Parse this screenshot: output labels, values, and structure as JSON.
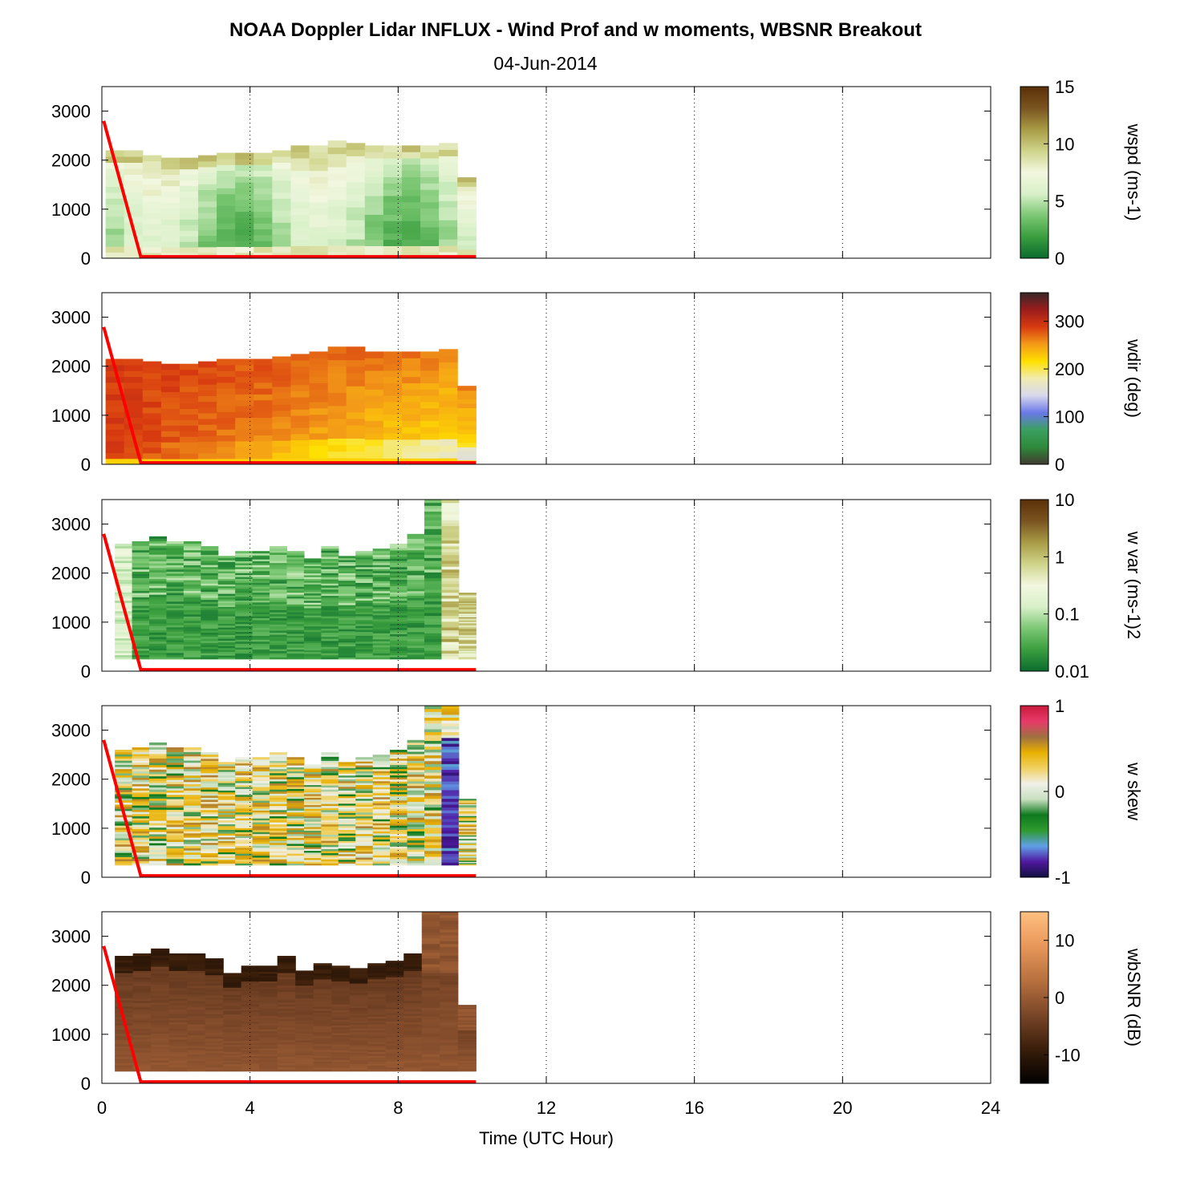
{
  "figure": {
    "title": "NOAA Doppler Lidar INFLUX - Wind Prof and w moments, WBSNR Breakout",
    "subtitle": "04-Jun-2014",
    "xlabel": "Time (UTC Hour)"
  },
  "colors": {
    "mixing_height_line": "#ff0000",
    "grid": "#000000"
  },
  "chart_data": [
    {
      "type": "heatmap",
      "name": "wspd",
      "colorbar_label": "wspd (ms-1)",
      "colorbar_ticks": [
        "15",
        "10",
        "5",
        "0"
      ],
      "clim": [
        0,
        15
      ],
      "colormap": [
        "#0b6b2e",
        "#3a9e3e",
        "#7cc874",
        "#d8f0c8",
        "#f2f7df",
        "#cfd48a",
        "#a89b45",
        "#7a5420",
        "#5a3008"
      ],
      "xlim": [
        0,
        24
      ],
      "ylim": [
        0,
        3500
      ],
      "xticks": [
        0,
        4,
        8,
        12,
        16,
        20,
        24
      ],
      "yticks": [
        "3000",
        "2000",
        "1000",
        "0"
      ],
      "grid": "vertical dotted",
      "time_bins_hr": [
        0.1,
        0.6,
        1.1,
        1.6,
        2.1,
        2.6,
        3.1,
        3.6,
        4.1,
        4.6,
        5.1,
        5.6,
        6.1,
        6.6,
        7.1,
        7.6,
        8.1,
        8.6,
        9.1,
        9.6,
        10.1
      ],
      "top_height_m": [
        2200,
        2200,
        2100,
        2050,
        2050,
        2100,
        2150,
        2150,
        2150,
        2200,
        2300,
        2300,
        2400,
        2350,
        2300,
        2300,
        2300,
        2300,
        2350,
        1650
      ],
      "bottom_height_m": 0,
      "value_range": [
        2,
        12
      ]
    },
    {
      "type": "heatmap",
      "name": "wdir",
      "colorbar_label": "wdir (deg)",
      "colorbar_ticks": [
        "300",
        "200",
        "100",
        "0"
      ],
      "clim": [
        0,
        360
      ],
      "colormap": [
        "#403a30",
        "#2e8a3a",
        "#3aa060",
        "#6a78e8",
        "#d8d8ee",
        "#f0ecb0",
        "#ffe000",
        "#f39a18",
        "#d83a10",
        "#9c1c1c",
        "#382828"
      ],
      "xlim": [
        0,
        24
      ],
      "ylim": [
        0,
        3500
      ],
      "xticks": [
        0,
        4,
        8,
        12,
        16,
        20,
        24
      ],
      "yticks": [
        "3000",
        "2000",
        "1000",
        "0"
      ],
      "grid": "vertical dotted",
      "top_height_m": [
        2150,
        2150,
        2100,
        2050,
        2050,
        2100,
        2150,
        2150,
        2150,
        2200,
        2250,
        2300,
        2400,
        2400,
        2300,
        2300,
        2300,
        2300,
        2350,
        1600
      ],
      "value_range": [
        220,
        330
      ]
    },
    {
      "type": "heatmap",
      "name": "w var",
      "colorbar_label": "w var (ms-1)2",
      "colorbar_ticks": [
        "10",
        "1",
        "0.1",
        "0.01"
      ],
      "clim": [
        0.01,
        10
      ],
      "log_scale": true,
      "colormap": [
        "#0b6b2e",
        "#3a9e3e",
        "#7cc874",
        "#d8f0c8",
        "#f2f7df",
        "#cfd48a",
        "#a89b45",
        "#7a5420",
        "#5a3008"
      ],
      "xlim": [
        0,
        24
      ],
      "ylim": [
        0,
        3500
      ],
      "xticks": [
        0,
        4,
        8,
        12,
        16,
        20,
        24
      ],
      "yticks": [
        "3000",
        "2000",
        "1000",
        "0"
      ],
      "grid": "vertical dotted",
      "top_height_m": [
        2600,
        2650,
        2750,
        2650,
        2650,
        2550,
        2350,
        2450,
        2450,
        2550,
        2450,
        2300,
        2550,
        2350,
        2450,
        2500,
        2600,
        2800,
        3500,
        3500,
        1600
      ],
      "bottom_height_m": 250,
      "value_range": [
        0.01,
        3
      ]
    },
    {
      "type": "heatmap",
      "name": "w skew",
      "colorbar_label": "w skew",
      "colorbar_ticks": [
        "1",
        "0",
        "-1"
      ],
      "clim": [
        -1,
        1
      ],
      "colormap": [
        "#101040",
        "#5018a0",
        "#60a0e8",
        "#2e9a2e",
        "#0f7a1e",
        "#c8e0c0",
        "#f0f0e8",
        "#f0d060",
        "#e8b000",
        "#a07040",
        "#e83a6a",
        "#c81a3a"
      ],
      "xlim": [
        0,
        24
      ],
      "ylim": [
        0,
        3500
      ],
      "xticks": [
        0,
        4,
        8,
        12,
        16,
        20,
        24
      ],
      "yticks": [
        "3000",
        "2000",
        "1000",
        "0"
      ],
      "grid": "vertical dotted",
      "top_height_m": [
        2600,
        2650,
        2750,
        2650,
        2650,
        2550,
        2350,
        2450,
        2450,
        2550,
        2450,
        2300,
        2550,
        2350,
        2450,
        2500,
        2600,
        2800,
        3500,
        3500,
        1600
      ],
      "bottom_height_m": 250,
      "value_range": [
        -1,
        1
      ]
    },
    {
      "type": "heatmap",
      "name": "wbSNR",
      "colorbar_label": "wbSNR (dB)",
      "colorbar_ticks": [
        "10",
        "0",
        "-10"
      ],
      "clim": [
        -15,
        15
      ],
      "colormap": [
        "#000000",
        "#3a1e0a",
        "#7a4628",
        "#b8703e",
        "#e8975a",
        "#ffc080"
      ],
      "xlim": [
        0,
        24
      ],
      "ylim": [
        0,
        3500
      ],
      "xticks": [
        0,
        4,
        8,
        12,
        16,
        20,
        24
      ],
      "yticks": [
        "3000",
        "2000",
        "1000",
        "0"
      ],
      "xticklabels": [
        "0",
        "4",
        "8",
        "12",
        "16",
        "20",
        "24"
      ],
      "grid": "vertical dotted",
      "top_height_m": [
        2600,
        2650,
        2750,
        2650,
        2650,
        2550,
        2250,
        2400,
        2400,
        2600,
        2300,
        2450,
        2400,
        2350,
        2450,
        2500,
        2650,
        3500,
        3500,
        1600
      ],
      "bottom_height_m": 250,
      "value_range": [
        -12,
        2
      ]
    }
  ],
  "mixing_height_line": {
    "x_hr": [
      0.05,
      1.05,
      10.1
    ],
    "y_m": [
      2800,
      30,
      30
    ]
  }
}
